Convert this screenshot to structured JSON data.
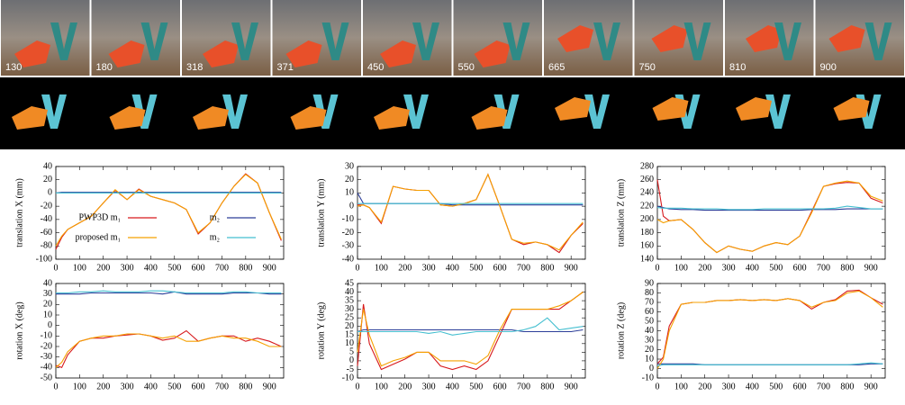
{
  "frames": [
    130,
    180,
    318,
    371,
    450,
    550,
    665,
    750,
    810,
    900
  ],
  "chart_data": [
    {
      "type": "line",
      "ylabel": "translation X (mm)",
      "legend": "lower left",
      "x": [
        0,
        25,
        50,
        100,
        150,
        200,
        250,
        300,
        350,
        400,
        450,
        500,
        550,
        600,
        650,
        700,
        750,
        800,
        850,
        900,
        950
      ],
      "xlim": [
        0,
        960
      ],
      "xticks": [
        0,
        100,
        200,
        300,
        400,
        500,
        600,
        700,
        800,
        900
      ],
      "ylim": [
        -100,
        40
      ],
      "yticks": [
        -100,
        -80,
        -60,
        -40,
        -20,
        0,
        20,
        40
      ],
      "series": [
        {
          "name": "PWP3D m₁",
          "color": "#d7191c",
          "values": [
            -85,
            -67,
            -55,
            -45,
            -35,
            -15,
            4,
            -10,
            6,
            -5,
            -10,
            -15,
            -25,
            -62,
            -45,
            -15,
            10,
            29,
            15,
            -30,
            -72
          ]
        },
        {
          "name": "m₂",
          "color": "#2c3e99",
          "values": [
            0,
            1,
            1,
            1,
            1,
            1,
            1,
            1,
            1,
            1,
            1,
            1,
            1,
            1,
            1,
            1,
            1,
            1,
            1,
            1,
            1
          ]
        },
        {
          "name": "proposed m₁",
          "color": "#f5a000",
          "values": [
            -80,
            -65,
            -55,
            -45,
            -35,
            -15,
            5,
            -10,
            5,
            -5,
            -10,
            -15,
            -25,
            -60,
            -45,
            -15,
            10,
            28,
            15,
            -30,
            -70
          ]
        },
        {
          "name": "m₂",
          "color": "#45bfd0",
          "values": [
            0,
            0,
            0,
            0,
            0,
            0,
            0,
            0,
            0,
            0,
            0,
            0,
            0,
            0,
            0,
            0,
            0,
            0,
            0,
            0,
            0
          ]
        }
      ]
    },
    {
      "type": "line",
      "ylabel": "translation Y (mm)",
      "x": [
        0,
        25,
        50,
        100,
        150,
        200,
        250,
        300,
        350,
        400,
        450,
        500,
        550,
        600,
        650,
        700,
        750,
        800,
        850,
        900,
        950
      ],
      "xlim": [
        0,
        960
      ],
      "xticks": [
        0,
        100,
        200,
        300,
        400,
        500,
        600,
        700,
        800,
        900
      ],
      "ylim": [
        -40,
        30
      ],
      "yticks": [
        -40,
        -30,
        -20,
        -10,
        0,
        10,
        20,
        30
      ],
      "series": [
        {
          "color": "#d7191c",
          "values": [
            1,
            1,
            -1,
            -13,
            15,
            13,
            12,
            12,
            1,
            0,
            2,
            5,
            24,
            0,
            -25,
            -29,
            -27,
            -29,
            -35,
            -22,
            -13
          ]
        },
        {
          "color": "#2c3e99",
          "values": [
            10,
            2,
            2,
            2,
            2,
            2,
            2,
            2,
            2,
            1,
            1,
            1,
            1,
            1,
            1,
            1,
            1,
            1,
            1,
            1,
            1
          ]
        },
        {
          "color": "#f5a000",
          "values": [
            0,
            1,
            -1,
            -12,
            15,
            13,
            12,
            12,
            1,
            0,
            2,
            5,
            24,
            0,
            -25,
            -28,
            -27,
            -29,
            -33,
            -22,
            -12
          ]
        },
        {
          "color": "#45bfd0",
          "values": [
            2,
            2,
            2,
            2,
            2,
            2,
            2,
            2,
            2,
            2,
            2,
            2,
            2,
            2,
            2,
            2,
            2,
            2,
            2,
            2,
            2
          ]
        }
      ]
    },
    {
      "type": "line",
      "ylabel": "translation Z (mm)",
      "x": [
        0,
        25,
        50,
        100,
        150,
        200,
        250,
        300,
        350,
        400,
        450,
        500,
        550,
        600,
        650,
        700,
        750,
        800,
        850,
        900,
        950
      ],
      "xlim": [
        0,
        960
      ],
      "xticks": [
        0,
        100,
        200,
        300,
        400,
        500,
        600,
        700,
        800,
        900
      ],
      "ylim": [
        140,
        280
      ],
      "yticks": [
        140,
        160,
        180,
        200,
        220,
        240,
        260,
        280
      ],
      "series": [
        {
          "color": "#d7191c",
          "values": [
            260,
            205,
            198,
            200,
            185,
            165,
            150,
            160,
            155,
            152,
            160,
            165,
            162,
            175,
            212,
            250,
            254,
            256,
            255,
            232,
            225
          ]
        },
        {
          "color": "#2c3e99",
          "values": [
            220,
            218,
            216,
            215,
            215,
            214,
            214,
            214,
            214,
            214,
            214,
            214,
            214,
            214,
            215,
            215,
            215,
            216,
            216,
            216,
            216
          ]
        },
        {
          "color": "#f5a000",
          "values": [
            200,
            195,
            198,
            200,
            185,
            165,
            150,
            160,
            155,
            152,
            160,
            165,
            162,
            175,
            210,
            250,
            255,
            258,
            255,
            235,
            228
          ]
        },
        {
          "color": "#45bfd0",
          "values": [
            218,
            217,
            217,
            217,
            216,
            216,
            216,
            215,
            215,
            215,
            216,
            216,
            216,
            216,
            216,
            216,
            217,
            220,
            218,
            216,
            216
          ]
        }
      ]
    },
    {
      "type": "line",
      "ylabel": "rotation X (deg)",
      "x": [
        0,
        25,
        50,
        100,
        150,
        200,
        250,
        300,
        350,
        400,
        450,
        500,
        550,
        600,
        650,
        700,
        750,
        800,
        850,
        900,
        950
      ],
      "xlim": [
        0,
        960
      ],
      "xticks": [
        0,
        100,
        200,
        300,
        400,
        500,
        600,
        700,
        800,
        900
      ],
      "ylim": [
        -50,
        40
      ],
      "yticks": [
        -50,
        -40,
        -30,
        -20,
        -10,
        0,
        10,
        20,
        30,
        40
      ],
      "series": [
        {
          "color": "#d7191c",
          "values": [
            -38,
            -40,
            -28,
            -15,
            -12,
            -12,
            -10,
            -9,
            -8,
            -10,
            -14,
            -12,
            -5,
            -15,
            -12,
            -10,
            -10,
            -15,
            -12,
            -15,
            -20
          ]
        },
        {
          "color": "#2c3e99",
          "values": [
            30,
            30,
            30,
            30,
            31,
            31,
            31,
            31,
            31,
            31,
            30,
            32,
            30,
            30,
            30,
            30,
            31,
            31,
            31,
            30,
            30
          ]
        },
        {
          "color": "#f5a000",
          "values": [
            -40,
            -35,
            -25,
            -15,
            -12,
            -10,
            -10,
            -8,
            -8,
            -10,
            -12,
            -10,
            -15,
            -15,
            -12,
            -10,
            -12,
            -12,
            -15,
            -20,
            -20
          ]
        },
        {
          "color": "#45bfd0",
          "values": [
            31,
            31,
            31,
            32,
            32,
            33,
            32,
            32,
            32,
            33,
            33,
            32,
            31,
            31,
            31,
            31,
            32,
            32,
            31,
            31,
            31
          ]
        }
      ]
    },
    {
      "type": "line",
      "ylabel": "rotation Y (deg)",
      "x": [
        0,
        25,
        50,
        100,
        150,
        200,
        250,
        300,
        350,
        400,
        450,
        500,
        550,
        600,
        650,
        700,
        750,
        800,
        850,
        900,
        950
      ],
      "xlim": [
        0,
        960
      ],
      "xticks": [
        0,
        100,
        200,
        300,
        400,
        500,
        600,
        700,
        800,
        900
      ],
      "ylim": [
        -10,
        45
      ],
      "yticks": [
        -10,
        -5,
        0,
        5,
        10,
        15,
        20,
        25,
        30,
        35,
        40,
        45
      ],
      "series": [
        {
          "color": "#d7191c",
          "values": [
            -3,
            33,
            10,
            -5,
            -2,
            1,
            5,
            5,
            -3,
            -5,
            -3,
            -5,
            0,
            15,
            30,
            30,
            30,
            30,
            30,
            35,
            40
          ]
        },
        {
          "color": "#2c3e99",
          "values": [
            17,
            18,
            18,
            18,
            18,
            18,
            18,
            18,
            18,
            18,
            18,
            18,
            18,
            18,
            18,
            17,
            17,
            17,
            17,
            17,
            18
          ]
        },
        {
          "color": "#f5a000",
          "values": [
            5,
            30,
            15,
            -3,
            0,
            2,
            5,
            5,
            0,
            0,
            0,
            -2,
            3,
            18,
            30,
            30,
            30,
            30,
            32,
            35,
            40
          ]
        },
        {
          "color": "#45bfd0",
          "values": [
            17,
            17,
            17,
            17,
            17,
            17,
            17,
            16,
            17,
            15,
            16,
            17,
            17,
            17,
            17,
            18,
            20,
            25,
            18,
            19,
            20
          ]
        }
      ]
    },
    {
      "type": "line",
      "ylabel": "rotation Z (deg)",
      "x": [
        0,
        25,
        50,
        100,
        150,
        200,
        250,
        300,
        350,
        400,
        450,
        500,
        550,
        600,
        650,
        700,
        750,
        800,
        850,
        900,
        950
      ],
      "xlim": [
        0,
        960
      ],
      "xticks": [
        0,
        100,
        200,
        300,
        400,
        500,
        600,
        700,
        800,
        900
      ],
      "ylim": [
        -10,
        90
      ],
      "yticks": [
        -10,
        0,
        10,
        20,
        30,
        40,
        50,
        60,
        70,
        80,
        90
      ],
      "series": [
        {
          "color": "#d7191c",
          "values": [
            5,
            12,
            45,
            68,
            70,
            70,
            72,
            72,
            73,
            72,
            73,
            72,
            74,
            72,
            63,
            70,
            73,
            82,
            83,
            75,
            68
          ]
        },
        {
          "color": "#2c3e99",
          "values": [
            5,
            5,
            5,
            5,
            5,
            4,
            4,
            4,
            4,
            4,
            4,
            4,
            4,
            4,
            4,
            4,
            4,
            4,
            4,
            5,
            5
          ]
        },
        {
          "color": "#f5a000",
          "values": [
            0,
            10,
            40,
            68,
            70,
            70,
            72,
            72,
            73,
            72,
            73,
            72,
            74,
            72,
            65,
            70,
            72,
            80,
            82,
            75,
            65
          ]
        },
        {
          "color": "#45bfd0",
          "values": [
            3,
            4,
            4,
            4,
            4,
            4,
            4,
            4,
            4,
            4,
            4,
            4,
            4,
            4,
            4,
            4,
            4,
            4,
            5,
            6,
            5
          ]
        }
      ]
    }
  ]
}
